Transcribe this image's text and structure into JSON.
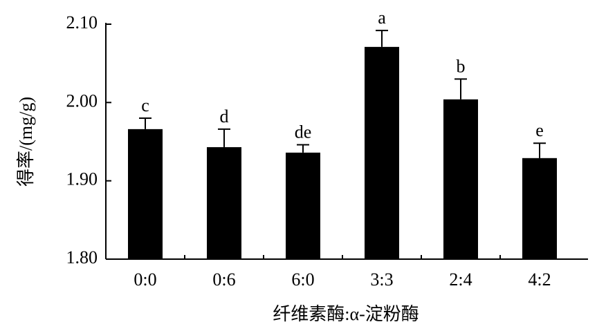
{
  "chart_data": {
    "type": "bar",
    "x_label": "纤维素酶:α-淀粉酶",
    "y_label": "得率/(mg/g)",
    "categories": [
      "0:0",
      "0:6",
      "6:0",
      "3:3",
      "2:4",
      "4:2"
    ],
    "values": [
      1.966,
      1.943,
      1.936,
      2.071,
      2.004,
      1.929
    ],
    "errors": [
      0.014,
      0.023,
      0.01,
      0.021,
      0.026,
      0.019
    ],
    "labels": [
      "c",
      "d",
      "de",
      "a",
      "b",
      "e"
    ],
    "color": "#000000",
    "ylim": [
      1.8,
      2.1
    ],
    "yticks": [
      {
        "value": 1.8,
        "label": "1.80"
      },
      {
        "value": 1.9,
        "label": "1.90"
      },
      {
        "value": 2.0,
        "label": "2.00"
      },
      {
        "value": 2.1,
        "label": "2.10"
      }
    ],
    "grid": false
  }
}
